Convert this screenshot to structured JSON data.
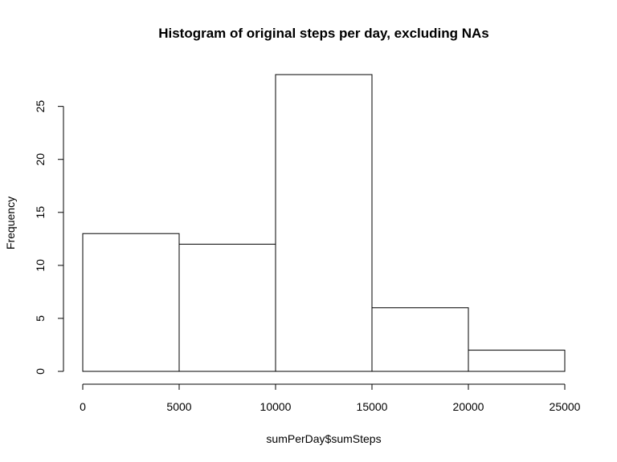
{
  "chart_data": {
    "type": "bar",
    "subtype": "histogram",
    "title": "Histogram of original steps per day, excluding NAs",
    "xlabel": "sumPerDay$sumSteps",
    "ylabel": "Frequency",
    "bins": [
      {
        "start": 0,
        "end": 5000,
        "count": 13
      },
      {
        "start": 5000,
        "end": 10000,
        "count": 12
      },
      {
        "start": 10000,
        "end": 15000,
        "count": 28
      },
      {
        "start": 15000,
        "end": 20000,
        "count": 6
      },
      {
        "start": 20000,
        "end": 25000,
        "count": 2
      }
    ],
    "xlim": [
      0,
      25000
    ],
    "ylim": [
      0,
      28
    ],
    "x_ticks": [
      "0",
      "5000",
      "10000",
      "15000",
      "20000",
      "25000"
    ],
    "y_ticks": [
      "0",
      "5",
      "10",
      "15",
      "20",
      "25"
    ],
    "grid": false,
    "legend": "none",
    "colors": {
      "bar_fill": "#ffffff",
      "bar_stroke": "#000000"
    }
  }
}
